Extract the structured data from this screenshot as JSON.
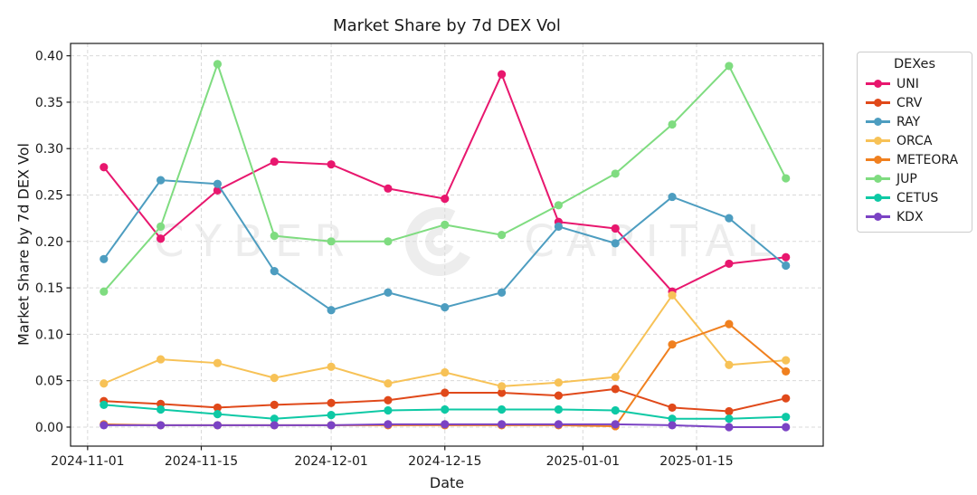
{
  "watermark": {
    "left": "CYBER",
    "right": "CAPITAL",
    "logo": "cyber-capital-ring-logo",
    "color": "#ededed"
  },
  "chart_data": {
    "type": "line",
    "title": "Market Share by 7d DEX Vol",
    "xlabel": "Date",
    "ylabel": "Market Share by 7d DEX Vol",
    "legend": {
      "title": "DEXes",
      "position": "outside-upper-right"
    },
    "grid": {
      "visible": true,
      "style": "dashed",
      "color": "#d9d9d9"
    },
    "x": [
      "2024-11-03",
      "2024-11-10",
      "2024-11-17",
      "2024-11-24",
      "2024-12-01",
      "2024-12-08",
      "2024-12-15",
      "2024-12-22",
      "2024-12-29",
      "2025-01-05",
      "2025-01-12",
      "2025-01-19",
      "2025-01-26"
    ],
    "series": [
      {
        "name": "UNI",
        "color": "#e8176e",
        "values": [
          0.28,
          0.203,
          0.255,
          0.286,
          0.283,
          0.257,
          0.246,
          0.38,
          0.221,
          0.214,
          0.146,
          0.176,
          0.183
        ]
      },
      {
        "name": "CRV",
        "color": "#e0491a",
        "values": [
          0.028,
          0.025,
          0.021,
          0.024,
          0.026,
          0.029,
          0.037,
          0.037,
          0.034,
          0.041,
          0.021,
          0.017,
          0.031
        ]
      },
      {
        "name": "RAY",
        "color": "#4d9dc0",
        "values": [
          0.181,
          0.266,
          0.262,
          0.168,
          0.126,
          0.145,
          0.129,
          0.145,
          0.216,
          0.198,
          0.248,
          0.225,
          0.174
        ]
      },
      {
        "name": "ORCA",
        "color": "#f7c257",
        "values": [
          0.047,
          0.073,
          0.069,
          0.053,
          0.065,
          0.047,
          0.059,
          0.044,
          0.048,
          0.054,
          0.142,
          0.067,
          0.072
        ]
      },
      {
        "name": "METEORA",
        "color": "#f0801f",
        "values": [
          0.003,
          0.002,
          0.002,
          0.002,
          0.002,
          0.002,
          0.002,
          0.002,
          0.002,
          0.001,
          0.089,
          0.111,
          0.06
        ]
      },
      {
        "name": "JUP",
        "color": "#7fdc80",
        "values": [
          0.146,
          0.216,
          0.391,
          0.206,
          0.2,
          0.2,
          0.218,
          0.207,
          0.239,
          0.273,
          0.326,
          0.389,
          0.268
        ]
      },
      {
        "name": "CETUS",
        "color": "#0ec9a5",
        "values": [
          0.024,
          0.019,
          0.014,
          0.009,
          0.013,
          0.018,
          0.019,
          0.019,
          0.019,
          0.018,
          0.009,
          0.009,
          0.011
        ]
      },
      {
        "name": "KDX",
        "color": "#7b43c4",
        "values": [
          0.002,
          0.002,
          0.002,
          0.002,
          0.002,
          0.003,
          0.003,
          0.003,
          0.003,
          0.003,
          0.002,
          0.0,
          0.0
        ]
      }
    ],
    "xtick_labels": [
      "2024-11-01",
      "2024-11-15",
      "2024-12-01",
      "2024-12-15",
      "2025-01-01",
      "2025-01-15"
    ],
    "ytick_labels": [
      "0.00",
      "0.05",
      "0.10",
      "0.15",
      "0.20",
      "0.25",
      "0.30",
      "0.35",
      "0.40"
    ],
    "xlim_days": [
      -2.1,
      90.6
    ],
    "ylim": [
      -0.0205,
      0.4133
    ]
  }
}
